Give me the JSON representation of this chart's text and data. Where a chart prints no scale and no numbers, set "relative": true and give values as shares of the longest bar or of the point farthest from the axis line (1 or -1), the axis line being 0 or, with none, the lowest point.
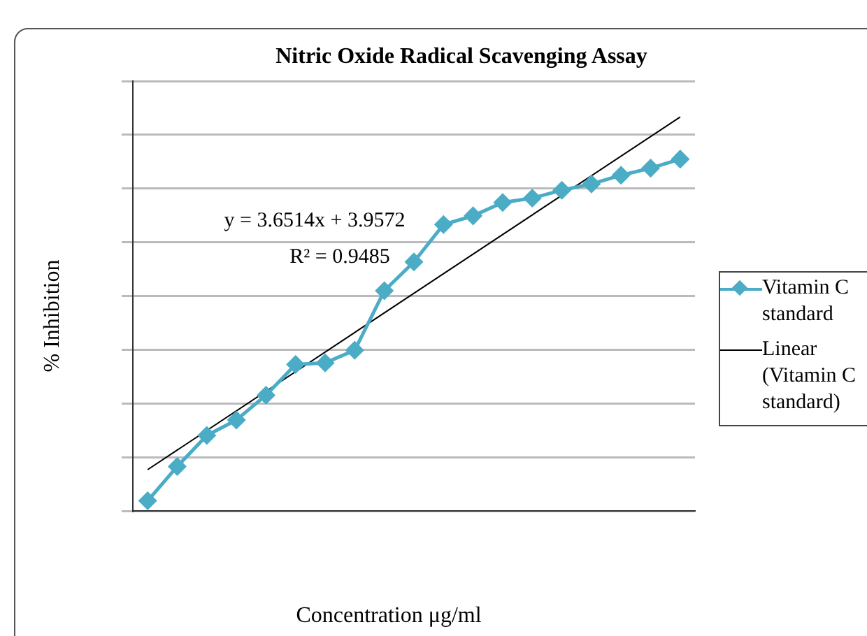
{
  "chart_data": {
    "type": "line",
    "title": "Nitric Oxide Radical Scavenging Assay",
    "xlabel": "Concentration μg/ml",
    "ylabel": "% Inhibition",
    "relative": true,
    "grid": "y",
    "legend": "right",
    "marker": "diamond",
    "categories": [
      null,
      null,
      null,
      null,
      null,
      null,
      null,
      null,
      null,
      null,
      null,
      null,
      null,
      null,
      null,
      null,
      null,
      null,
      null
    ],
    "series": [
      {
        "name": "Vitamin C standard",
        "color": "#4bacc6",
        "values": [
          0.026,
          0.113,
          0.192,
          0.231,
          0.294,
          0.372,
          0.376,
          0.408,
          0.559,
          0.632,
          0.727,
          0.749,
          0.783,
          0.794,
          0.814,
          0.83,
          0.852,
          0.87,
          0.893
        ]
      },
      {
        "name": "Linear (Vitamin C standard)",
        "type": "line",
        "color": "#000000",
        "marker": "none",
        "values": [
          0.105,
          null,
          null,
          null,
          null,
          null,
          null,
          null,
          null,
          null,
          null,
          null,
          null,
          null,
          null,
          null,
          null,
          null,
          1
        ]
      }
    ],
    "annotations": [
      "y = 3.6514x + 3.9572",
      "R² = 0.9485"
    ]
  }
}
